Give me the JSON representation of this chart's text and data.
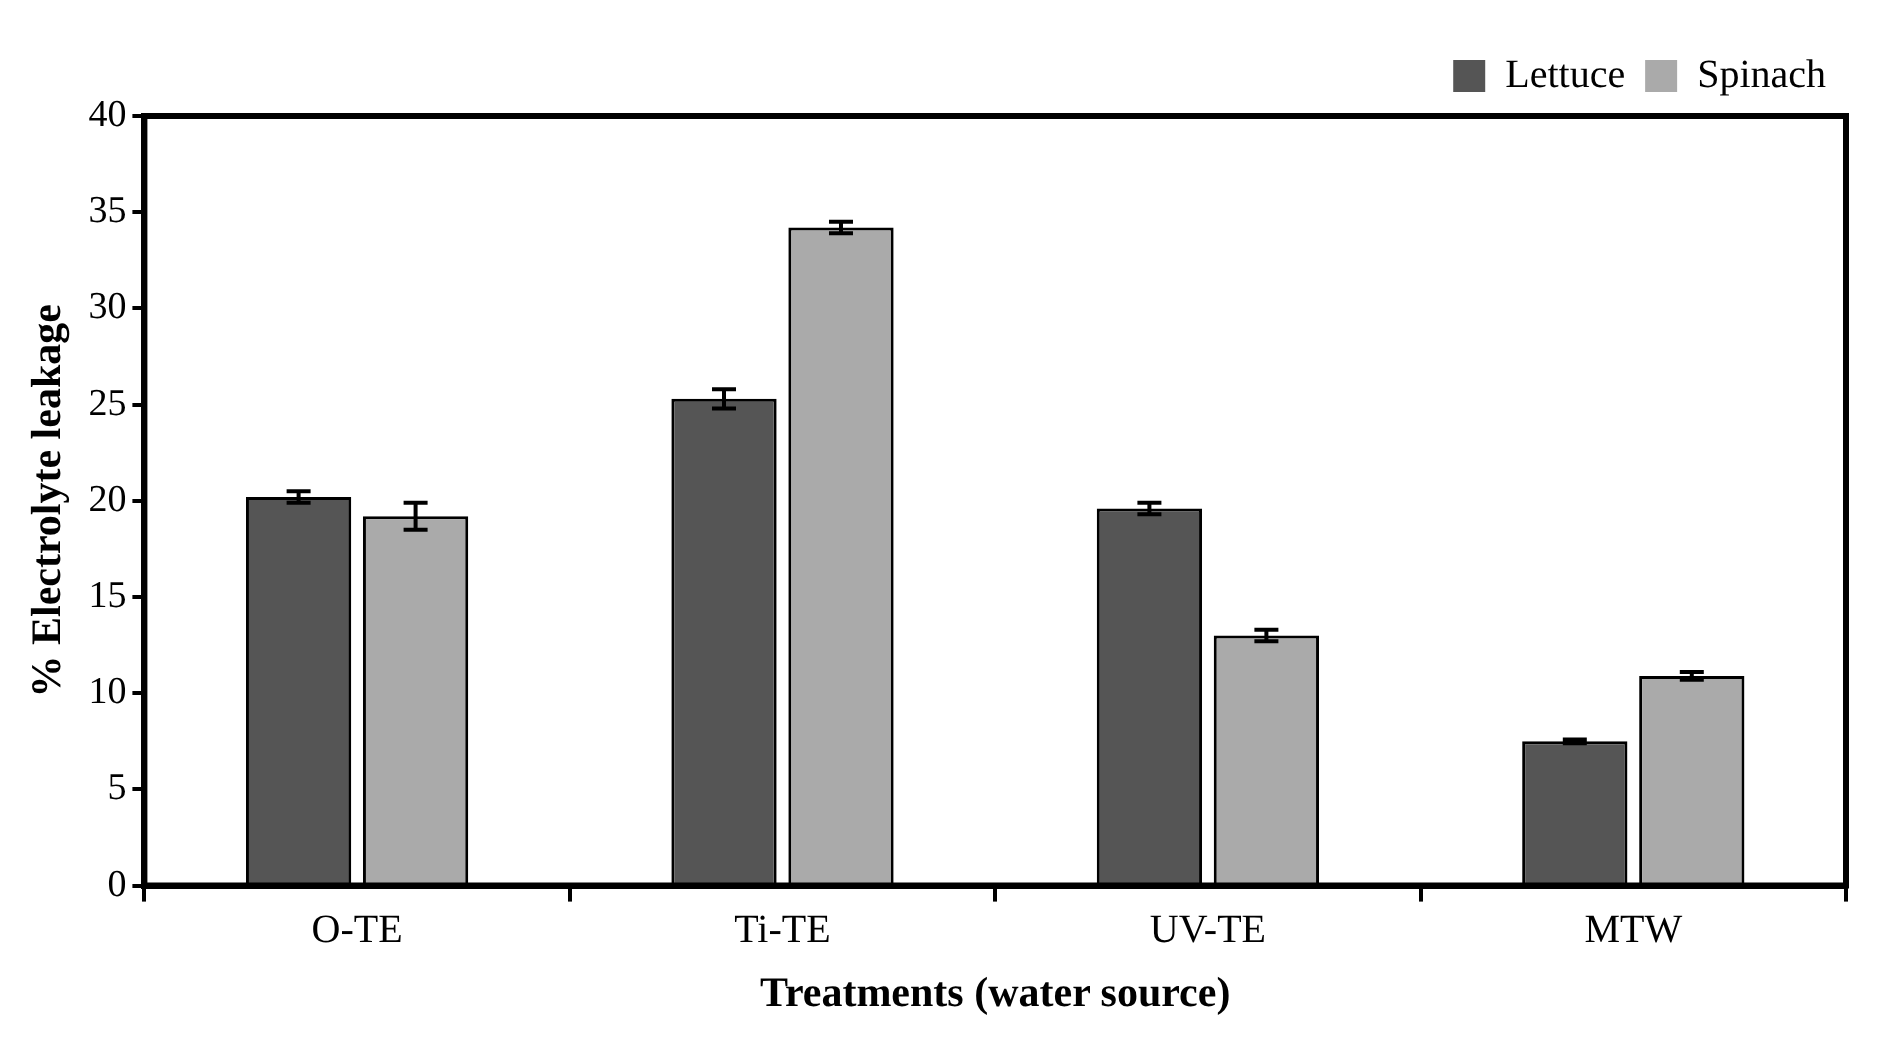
{
  "chart_data": {
    "type": "bar",
    "xlabel": "Treatments (water source)",
    "ylabel": "% Electrolyte leakage",
    "categories": [
      "O-TE",
      "Ti-TE",
      "UV-TE",
      "MTW"
    ],
    "series": [
      {
        "name": "Lettuce",
        "color": "#555555",
        "values": [
          20.2,
          25.3,
          19.6,
          7.5
        ],
        "errors": [
          0.3,
          0.5,
          0.3,
          0.1
        ]
      },
      {
        "name": "Spinach",
        "color": "#aaaaaa",
        "values": [
          19.2,
          34.2,
          13.0,
          10.9
        ],
        "errors": [
          0.7,
          0.3,
          0.3,
          0.2
        ]
      }
    ],
    "ylim": [
      0,
      40
    ],
    "yticks": [
      0,
      5,
      10,
      15,
      20,
      25,
      30,
      35,
      40
    ],
    "grid": false,
    "legend": "top right"
  }
}
